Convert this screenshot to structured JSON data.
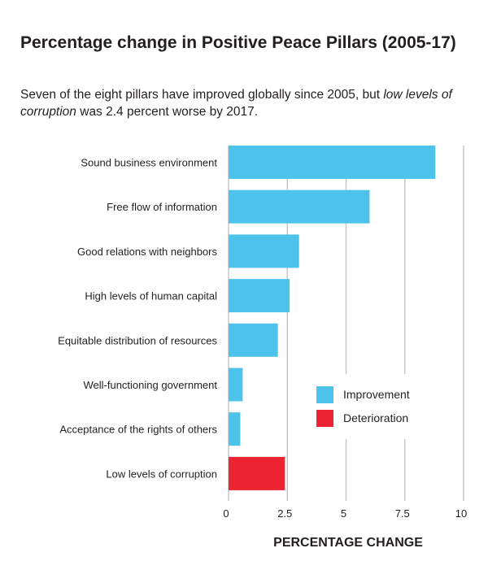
{
  "header": {
    "title": "Percentage change in Positive Peace Pillars (2005-17)",
    "subtitle_before": "Seven of the eight pillars have improved globally since 2005, but ",
    "subtitle_italic": "low levels of corruption",
    "subtitle_after": " was 2.4 percent worse by 2017."
  },
  "chart_data": {
    "type": "bar",
    "orientation": "horizontal",
    "title": "Percentage change in Positive Peace Pillars (2005-17)",
    "xlabel": "PERCENTAGE CHANGE",
    "ylabel": "",
    "xlim": [
      0,
      10
    ],
    "xticks": [
      "0",
      "2.5",
      "5",
      "7.5",
      "10"
    ],
    "grid": true,
    "legend_position": "bottom-right inside",
    "categories": [
      "Sound business environment",
      "Free flow of information",
      "Good relations with neighbors",
      "High levels of human capital",
      "Equitable distribution of resources",
      "Well-functioning government",
      "Acceptance of the rights of others",
      "Low levels of corruption"
    ],
    "values": [
      8.8,
      6.0,
      3.0,
      2.6,
      2.1,
      0.6,
      0.5,
      2.4
    ],
    "status": [
      "Improvement",
      "Improvement",
      "Improvement",
      "Improvement",
      "Improvement",
      "Improvement",
      "Improvement",
      "Deterioration"
    ],
    "legend": [
      {
        "name": "Improvement",
        "color": "#4dc3eb"
      },
      {
        "name": "Deterioration",
        "color": "#ec2330"
      }
    ]
  }
}
